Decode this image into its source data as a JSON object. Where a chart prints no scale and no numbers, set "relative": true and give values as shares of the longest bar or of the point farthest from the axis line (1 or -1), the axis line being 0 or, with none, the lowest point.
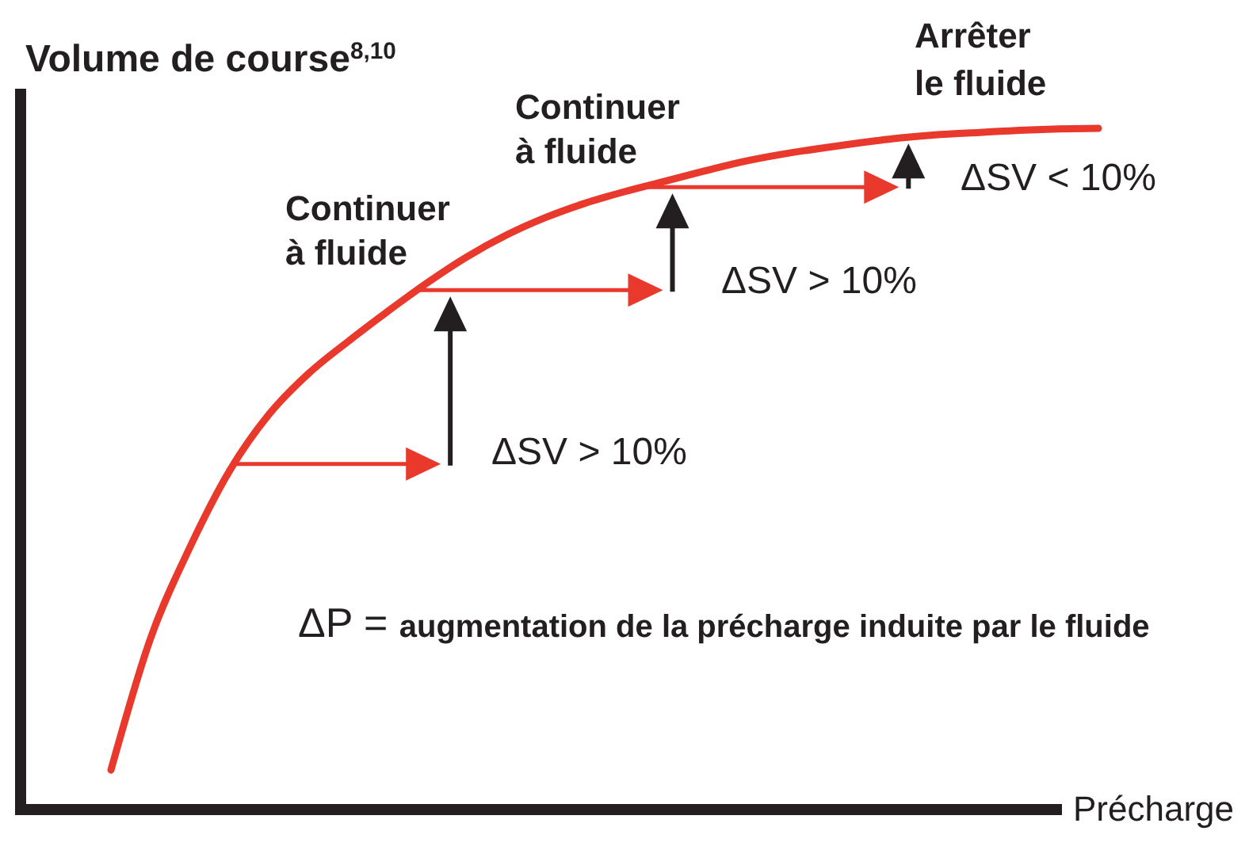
{
  "chart_data": {
    "type": "line",
    "relative": true,
    "ylabel": "Volume de course$^{8,10}$",
    "xlabel": "Précharge",
    "categories": [
      null,
      null,
      null,
      null,
      null,
      null,
      null,
      null,
      null,
      null,
      null,
      null,
      null,
      null,
      null,
      null,
      null,
      null,
      null,
      null,
      null,
      null,
      null,
      null,
      null,
      null
    ],
    "series": [
      {
        "color": "#e8392c",
        "values": [
          0.058,
          0.251,
          0.385,
          0.497,
          0.58,
          0.64,
          0.687,
          0.731,
          0.773,
          0.811,
          0.843,
          0.869,
          0.89,
          0.907,
          0.922,
          0.937,
          0.951,
          0.962,
          0.971,
          0.979,
          0.986,
          0.991,
          0.994,
          0.997,
          0.999,
          1
        ]
      }
    ],
    "annotations": [
      "Continuer\nà fluide",
      "Continuer\nà fluide",
      "Arrêter\nle fluide",
      "ΔSV > 10%",
      "ΔSV > 10%",
      "ΔSV < 10%",
      "ΔP = augmentation de la précharge induite par le fluide"
    ]
  }
}
